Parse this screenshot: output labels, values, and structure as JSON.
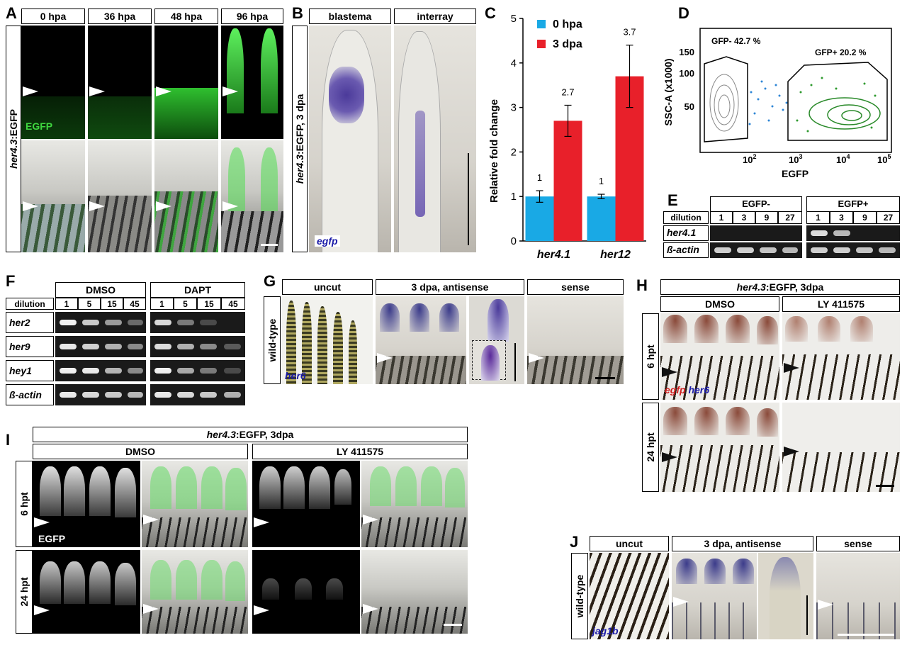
{
  "panels": {
    "A": {
      "label": "A",
      "headers": [
        "0 hpa",
        "36 hpa",
        "48 hpa",
        "96 hpa"
      ],
      "side_label_gene": "her4.3",
      "side_label_rest": ":EGFP",
      "channel_label": "EGFP"
    },
    "B": {
      "label": "B",
      "headers": [
        "blastema",
        "interray"
      ],
      "side_label_gene": "her4.3",
      "side_label_rest": ":EGFP, 3 dpa",
      "probe": "egfp"
    },
    "C": {
      "label": "C",
      "legend": [
        "0 hpa",
        "3 dpa"
      ]
    },
    "D": {
      "label": "D",
      "gate_neg": "GFP- 42.7 %",
      "gate_pos": "GFP+ 20.2 %",
      "ylabel": "SSC-A (x1000)",
      "xlabel": "EGFP",
      "yticks": [
        "150",
        "100",
        "50"
      ],
      "xticks": [
        "10",
        "10",
        "10",
        "10"
      ],
      "xtick_exp": [
        "2",
        "3",
        "4",
        "5"
      ]
    },
    "E": {
      "label": "E",
      "groups": [
        "EGFP-",
        "EGFP+"
      ],
      "dilution_label": "dilution",
      "dilutions": [
        "1",
        "3",
        "9",
        "27"
      ],
      "rows": [
        "her4.1",
        "ß-actin"
      ]
    },
    "F": {
      "label": "F",
      "groups": [
        "DMSO",
        "DAPT"
      ],
      "dilution_label": "dilution",
      "dilutions": [
        "1",
        "5",
        "15",
        "45"
      ],
      "rows": [
        "her2",
        "her9",
        "hey1",
        "ß-actin"
      ]
    },
    "G": {
      "label": "G",
      "headers": [
        "uncut",
        "3 dpa, antisense",
        "sense"
      ],
      "side_label": "wild-type",
      "probe": "her6"
    },
    "H": {
      "label": "H",
      "title_gene": "her4.3",
      "title_rest": ":EGFP, 3dpa",
      "headers": [
        "DMSO",
        "LY 411575"
      ],
      "rows": [
        "6 hpt",
        "24 hpt"
      ],
      "probe_red": "egfp",
      "probe_blue": "her6"
    },
    "I": {
      "label": "I",
      "title_gene": "her4.3",
      "title_rest": ":EGFP, 3dpa",
      "headers": [
        "DMSO",
        "LY 411575"
      ],
      "rows": [
        "6 hpt",
        "24 hpt"
      ],
      "channel_label": "EGFP"
    },
    "J": {
      "label": "J",
      "headers": [
        "uncut",
        "3 dpa, antisense",
        "sense"
      ],
      "side_label": "wild-type",
      "probe": "jag1b"
    }
  },
  "chart_data": {
    "type": "bar",
    "categories": [
      "her4.1",
      "her12"
    ],
    "series": [
      {
        "name": "0 hpa",
        "values": [
          1,
          1
        ],
        "errors": [
          0.13,
          0.05
        ],
        "labels": [
          "1",
          "1"
        ]
      },
      {
        "name": "3 dpa",
        "values": [
          2.7,
          3.7
        ],
        "errors": [
          0.35,
          0.7
        ],
        "labels": [
          "2.7",
          "3.7"
        ]
      }
    ],
    "ylabel": "Relative fold change",
    "xlabel": "",
    "ylim": [
      0,
      5
    ],
    "yticks": [
      0,
      1,
      2,
      3,
      4,
      5
    ],
    "grid": false,
    "legend": "top-left",
    "colors": [
      "#19a9e5",
      "#e8202a"
    ]
  }
}
